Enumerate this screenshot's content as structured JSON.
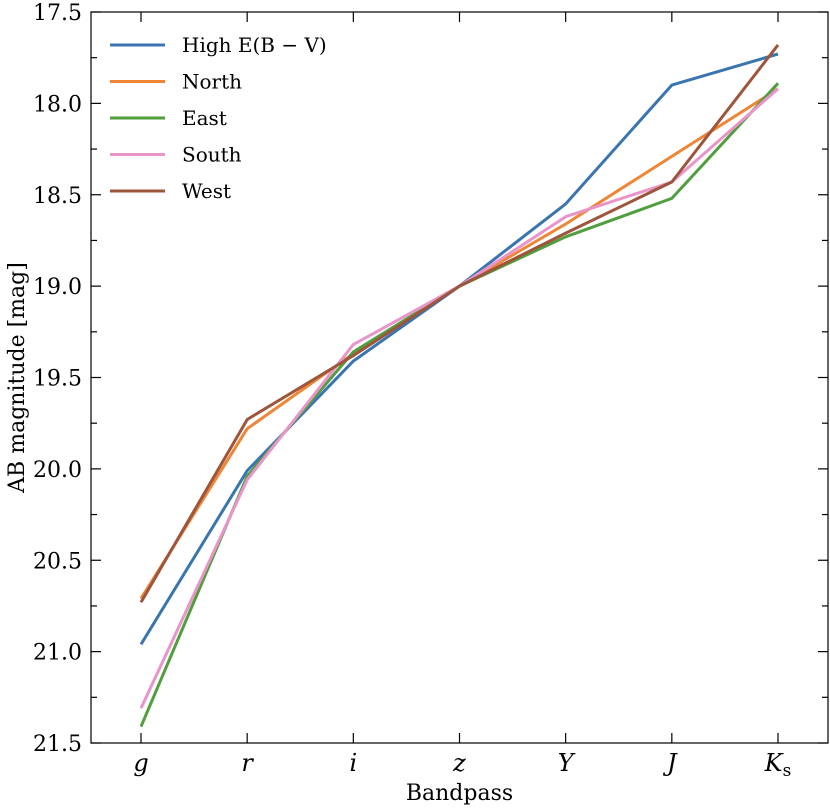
{
  "chart_data": {
    "type": "line",
    "xlabel": "Bandpass",
    "ylabel": "AB magnitude [mag]",
    "categories": [
      "g",
      "r",
      "i",
      "z",
      "Y",
      "J",
      "K"
    ],
    "categories_subscript": [
      "",
      "",
      "",
      "",
      "",
      "",
      "s"
    ],
    "ylim": [
      17.5,
      21.5
    ],
    "y_inverted": true,
    "yticks": [
      "17.5",
      "18.0",
      "18.5",
      "19.0",
      "19.5",
      "20.0",
      "20.5",
      "21.0",
      "21.5"
    ],
    "grid": false,
    "legend_position": "top-left",
    "series": [
      {
        "name": "High E(B − V)",
        "color": "#3b75af",
        "values": [
          20.96,
          20.01,
          19.41,
          19.0,
          18.55,
          17.9,
          17.73
        ]
      },
      {
        "name": "North",
        "color": "#ef8636",
        "values": [
          20.71,
          19.78,
          19.37,
          19.0,
          18.66,
          18.29,
          17.92
        ]
      },
      {
        "name": "East",
        "color": "#519e3e",
        "values": [
          21.41,
          20.04,
          19.36,
          19.0,
          18.73,
          18.52,
          17.89
        ]
      },
      {
        "name": "South",
        "color": "#e995c9",
        "values": [
          21.31,
          20.06,
          19.32,
          19.0,
          18.62,
          18.43,
          17.92
        ]
      },
      {
        "name": "West",
        "color": "#9d553c",
        "values": [
          20.73,
          19.73,
          19.38,
          19.0,
          18.71,
          18.43,
          17.68
        ]
      }
    ]
  }
}
